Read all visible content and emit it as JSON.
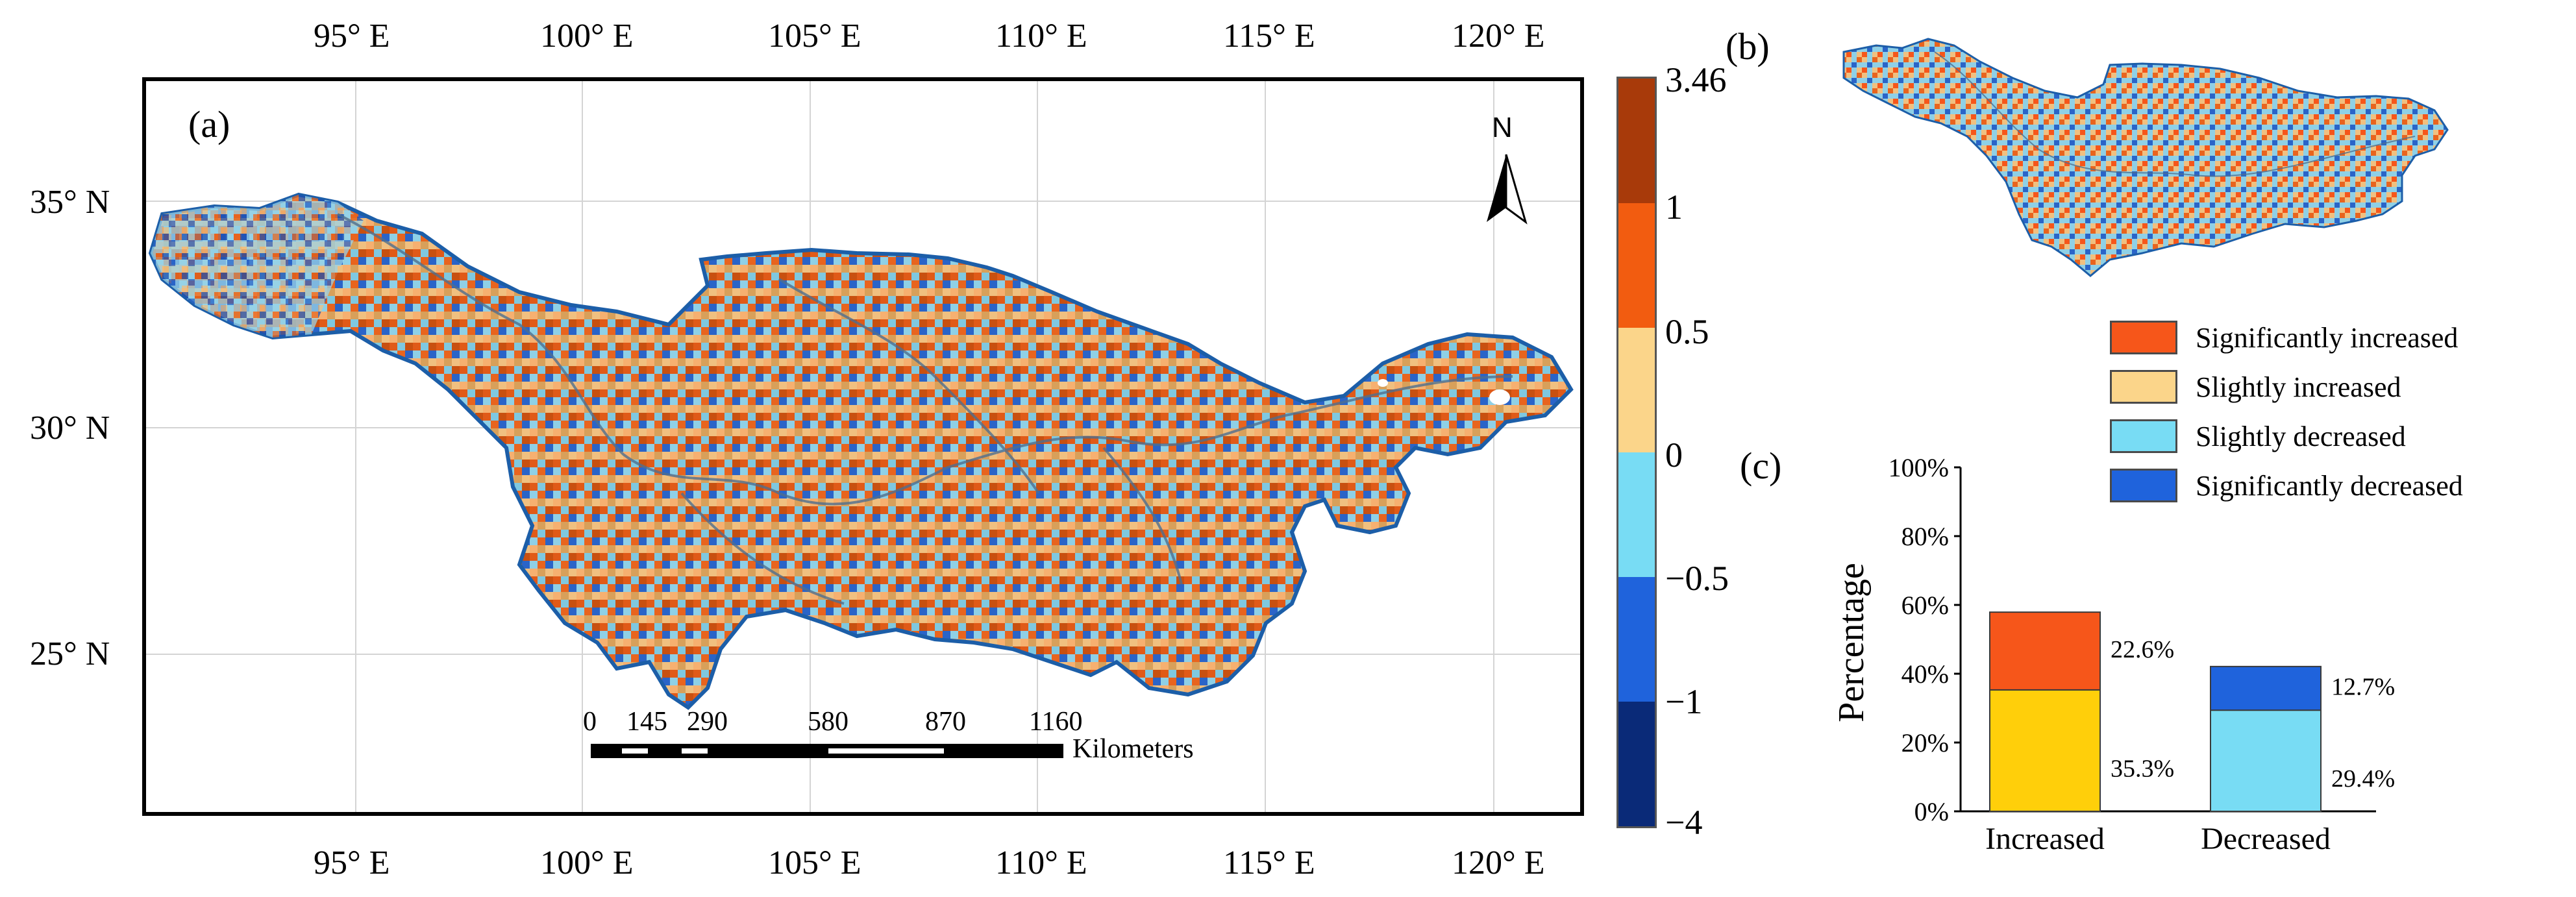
{
  "panel_a": {
    "label": "(a)",
    "north_label": "N",
    "lon_ticks": [
      "95° E",
      "100° E",
      "105° E",
      "110° E",
      "115° E",
      "120° E"
    ],
    "lat_ticks": [
      "35° N",
      "30° N",
      "25° N"
    ],
    "scalebar": {
      "ticks": [
        "0",
        "145",
        "290",
        "580",
        "870",
        "1160"
      ],
      "unit": "Kilometers"
    },
    "colorbar": {
      "labels": [
        "3.46",
        "1",
        "0.5",
        "0",
        "−0.5",
        "−1",
        "−4"
      ],
      "colors": [
        "#a83a0a",
        "#f25c10",
        "#fbd58a",
        "#78dcf4",
        "#1f63dc",
        "#0a2a78"
      ]
    }
  },
  "panel_b": {
    "label": "(b)"
  },
  "legend": {
    "items": [
      {
        "label": "Significantly increased",
        "color": "#f6561a"
      },
      {
        "label": "Slightly increased",
        "color": "#fbd58a"
      },
      {
        "label": "Slightly decreased",
        "color": "#78dcf4"
      },
      {
        "label": "Significantly decreased",
        "color": "#1f63dc"
      }
    ]
  },
  "chart_data": {
    "type": "bar",
    "stacked": true,
    "panel_label": "(c)",
    "categories": [
      "Increased",
      "Decreased"
    ],
    "series": [
      {
        "name": "Slightly",
        "values": [
          35.3,
          29.4
        ],
        "colors": [
          "#ffcf0a",
          "#78dcf4"
        ]
      },
      {
        "name": "Significantly",
        "values": [
          22.6,
          12.7
        ],
        "colors": [
          "#f6561a",
          "#1f63dc"
        ]
      }
    ],
    "data_labels": [
      "35.3%",
      "22.6%",
      "29.4%",
      "12.7%"
    ],
    "ylabel": "Percentage",
    "ylim": [
      0,
      100
    ],
    "yticks": [
      "0%",
      "20%",
      "40%",
      "60%",
      "80%",
      "100%"
    ]
  }
}
